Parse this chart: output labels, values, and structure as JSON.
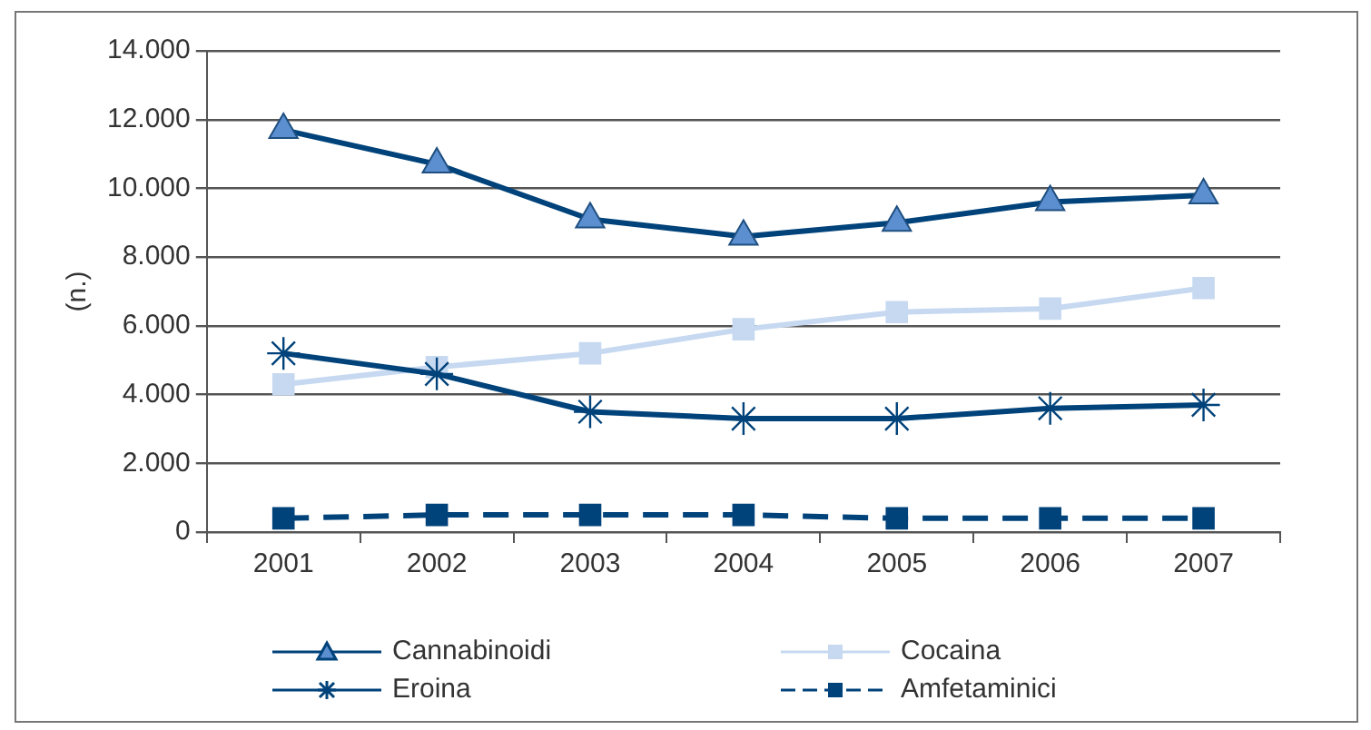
{
  "chart_data": {
    "type": "line",
    "ylabel": "(n.)",
    "categories": [
      "2001",
      "2002",
      "2003",
      "2004",
      "2005",
      "2006",
      "2007"
    ],
    "ylim": [
      0,
      14000
    ],
    "yticks": [
      {
        "value": 0,
        "label": "0"
      },
      {
        "value": 2000,
        "label": "2.000"
      },
      {
        "value": 4000,
        "label": "4.000"
      },
      {
        "value": 6000,
        "label": "6.000"
      },
      {
        "value": 8000,
        "label": "8.000"
      },
      {
        "value": 10000,
        "label": "10.000"
      },
      {
        "value": 12000,
        "label": "12.000"
      },
      {
        "value": 14000,
        "label": "14.000"
      }
    ],
    "grid": "y",
    "legend": "bottom",
    "series": [
      {
        "name": "Cannabinoidi",
        "color": "#00427a",
        "marker": "triangle",
        "line_style": "solid",
        "values": [
          11700,
          10700,
          9100,
          8600,
          9000,
          9600,
          9800
        ]
      },
      {
        "name": "Cocaina",
        "color": "#c6d9f1",
        "marker": "square",
        "line_style": "solid",
        "values": [
          4300,
          4800,
          5200,
          5900,
          6400,
          6500,
          7100
        ]
      },
      {
        "name": "Eroina",
        "color": "#00427a",
        "marker": "cross",
        "line_style": "solid",
        "values": [
          5200,
          4600,
          3500,
          3300,
          3300,
          3600,
          3700
        ]
      },
      {
        "name": "Amfetaminici",
        "color": "#00427a",
        "marker": "square",
        "line_style": "dashed",
        "values": [
          400,
          500,
          500,
          500,
          400,
          400,
          400
        ]
      }
    ]
  }
}
